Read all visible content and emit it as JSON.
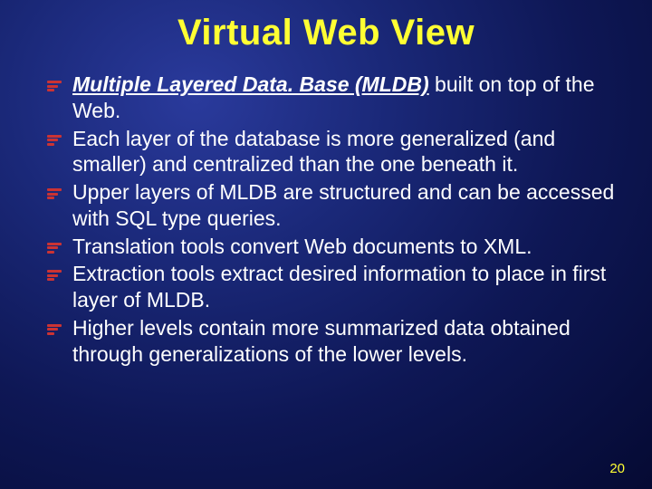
{
  "slide": {
    "title": "Virtual Web View",
    "pageNumber": "20",
    "background": {
      "gradient_center": "#2a3a9c",
      "gradient_mid": "#1a2878",
      "gradient_outer": "#050a33"
    },
    "colors": {
      "title": "#ffff33",
      "body": "#ffffff",
      "bullet_marker": "#cc3333",
      "page_number": "#ffff33"
    },
    "typography": {
      "title_fontsize": 40,
      "body_fontsize": 23,
      "font_family": "Arial"
    },
    "bullets": [
      {
        "emph": "Multiple Layered Data. Base (MLDB)",
        "rest": " built on top of the Web."
      },
      {
        "text": "Each layer of the database is more generalized (and smaller) and centralized than the one beneath it."
      },
      {
        "text": "Upper layers of MLDB are structured and can be accessed with SQL type queries."
      },
      {
        "text": "Translation tools convert Web documents to XML."
      },
      {
        "text": "Extraction tools extract desired information to place in first layer of MLDB."
      },
      {
        "text": "Higher levels contain more summarized data obtained through generalizations of the lower levels."
      }
    ]
  }
}
